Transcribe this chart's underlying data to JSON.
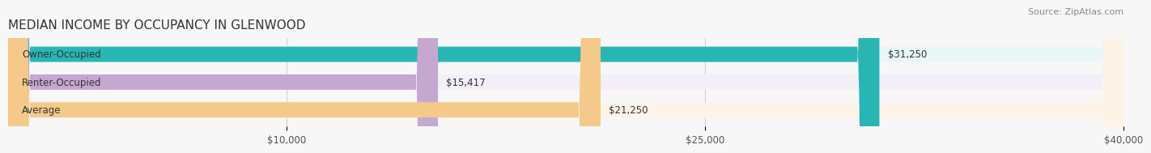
{
  "title": "MEDIAN INCOME BY OCCUPANCY IN GLENWOOD",
  "source": "Source: ZipAtlas.com",
  "categories": [
    "Owner-Occupied",
    "Renter-Occupied",
    "Average"
  ],
  "values": [
    31250,
    15417,
    21250
  ],
  "bar_colors": [
    "#2ab5b5",
    "#c4a8d0",
    "#f5c98a"
  ],
  "bar_bg_colors": [
    "#e8f7f7",
    "#f3eef7",
    "#fdf4e7"
  ],
  "value_labels": [
    "$31,250",
    "$15,417",
    "$21,250"
  ],
  "xlim": [
    0,
    40000
  ],
  "xticks": [
    10000,
    25000,
    40000
  ],
  "xtick_labels": [
    "$10,000",
    "$25,000",
    "$40,000"
  ],
  "background_color": "#f7f7f7",
  "title_fontsize": 11,
  "label_fontsize": 8.5,
  "tick_fontsize": 8.5,
  "source_fontsize": 8
}
